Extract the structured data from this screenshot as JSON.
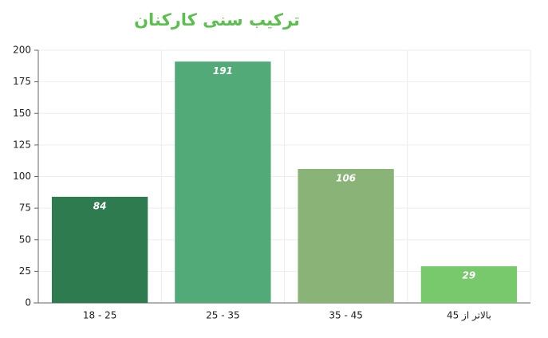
{
  "chart_data": {
    "type": "bar",
    "title": "ترکیب سنی کارکنان",
    "categories": [
      "18 - 25",
      "25 - 35",
      "35 - 45",
      "بالاتر از 45"
    ],
    "values": [
      84,
      191,
      106,
      29
    ],
    "colors": [
      "#2e7b50",
      "#52aa79",
      "#8ab477",
      "#77c96c"
    ],
    "title_color": "#5cbf4f",
    "ylim": [
      0,
      200
    ],
    "yticks": [
      0,
      25,
      50,
      75,
      100,
      125,
      150,
      175,
      200
    ],
    "grid": true
  }
}
